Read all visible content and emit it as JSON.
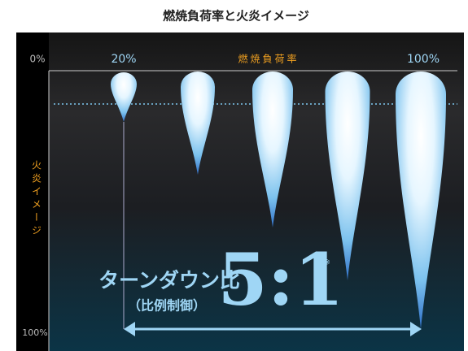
{
  "title": "燃焼負荷率と火炎イメージ",
  "x_axis": {
    "label": "燃焼負荷率",
    "start": "0%",
    "min_load": "20%",
    "max_load": "100%"
  },
  "y_axis": {
    "label": "火炎イメージ",
    "bottom": "100%"
  },
  "turndown": {
    "label": "ターンダウン比",
    "sub": "（比例制御）",
    "ratio": "5:1",
    "note_mark": "※"
  }
}
